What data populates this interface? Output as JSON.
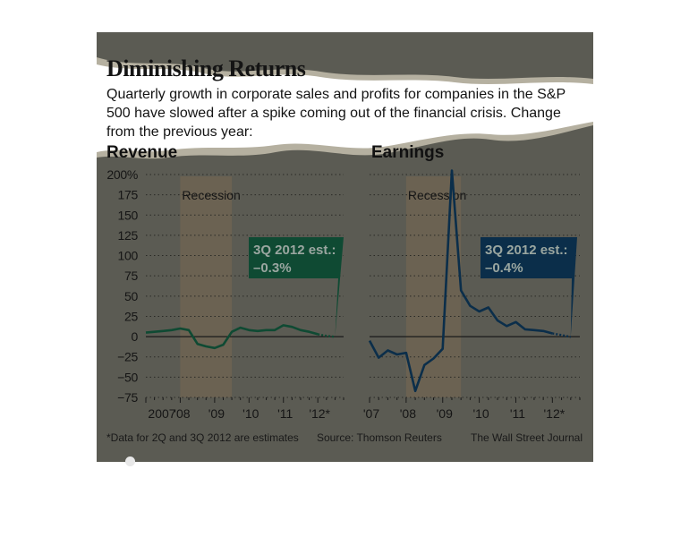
{
  "header": {
    "title": "Diminishing Returns",
    "subtitle": "Quarterly growth in corporate sales and profits for companies in the S&P 500 have slowed after a spike coming out of the financial crisis. Change from the previous year:"
  },
  "footer": {
    "note": "*Data for 2Q and 3Q 2012 are estimates",
    "source": "Source: Thomson Reuters",
    "credit": "The Wall Street Journal"
  },
  "colors": {
    "background": "#5b5b53",
    "recession_band": "#6b6252",
    "revenue_line": "#0f4a33",
    "earnings_line": "#0b2e4a",
    "callout_revenue": "#0f4a33",
    "callout_earnings": "#0b2e4a"
  },
  "chart_data": [
    {
      "type": "line",
      "title": "Revenue",
      "ylim": [
        -75,
        200
      ],
      "yticks": [
        {
          "v": 200,
          "label": "200%"
        },
        {
          "v": 175,
          "label": "175"
        },
        {
          "v": 150,
          "label": "150"
        },
        {
          "v": 125,
          "label": "125"
        },
        {
          "v": 100,
          "label": "100"
        },
        {
          "v": 75,
          "label": "75"
        },
        {
          "v": 50,
          "label": "50"
        },
        {
          "v": 25,
          "label": "25"
        },
        {
          "v": 0,
          "label": "0"
        },
        {
          "v": -25,
          "label": "−25"
        },
        {
          "v": -50,
          "label": "−50"
        },
        {
          "v": -75,
          "label": "−75"
        }
      ],
      "xlim": [
        2007.0,
        2012.75
      ],
      "xticks": [
        {
          "v": 2007.0,
          "label": "2007"
        },
        {
          "v": 2008.0,
          "label": "'08"
        },
        {
          "v": 2009.0,
          "label": "'09"
        },
        {
          "v": 2010.0,
          "label": "'10"
        },
        {
          "v": 2011.0,
          "label": "'11"
        },
        {
          "v": 2012.0,
          "label": "'12*"
        }
      ],
      "grid": true,
      "recession": {
        "label": "Recession",
        "x0": 2008.0,
        "x1": 2009.5
      },
      "series": [
        {
          "x": [
            2007.0,
            2007.25,
            2007.5,
            2007.75,
            2008.0,
            2008.25,
            2008.5,
            2008.75,
            2009.0,
            2009.25,
            2009.5,
            2009.75,
            2010.0,
            2010.25,
            2010.5,
            2010.75,
            2011.0,
            2011.25,
            2011.5,
            2011.75,
            2012.0
          ],
          "y": [
            5,
            6,
            7,
            8,
            10,
            8,
            -9,
            -12,
            -14,
            -10,
            6,
            11,
            8,
            7,
            8,
            8,
            14,
            12,
            8,
            6,
            3
          ]
        }
      ],
      "estimate": {
        "x": [
          2012.0,
          2012.25,
          2012.5
        ],
        "y": [
          3,
          1,
          -0.3
        ]
      },
      "callout": {
        "line1": "3Q 2012 est.:",
        "line2": "–0.3%"
      }
    },
    {
      "type": "line",
      "title": "Earnings",
      "ylim": [
        -75,
        200
      ],
      "xlim": [
        2007.0,
        2012.75
      ],
      "xticks": [
        {
          "v": 2007.0,
          "label": "'07"
        },
        {
          "v": 2008.0,
          "label": "'08"
        },
        {
          "v": 2009.0,
          "label": "'09"
        },
        {
          "v": 2010.0,
          "label": "'10"
        },
        {
          "v": 2011.0,
          "label": "'11"
        },
        {
          "v": 2012.0,
          "label": "'12*"
        }
      ],
      "grid": true,
      "recession": {
        "label": "Recession",
        "x0": 2008.0,
        "x1": 2009.5
      },
      "series": [
        {
          "x": [
            2007.0,
            2007.25,
            2007.5,
            2007.75,
            2008.0,
            2008.25,
            2008.5,
            2008.75,
            2009.0,
            2009.25,
            2009.5,
            2009.75,
            2010.0,
            2010.25,
            2010.5,
            2010.75,
            2011.0,
            2011.25,
            2011.5,
            2011.75,
            2012.0
          ],
          "y": [
            -5,
            -26,
            -17,
            -22,
            -20,
            -67,
            -35,
            -27,
            -15,
            205,
            57,
            38,
            31,
            36,
            20,
            13,
            18,
            9,
            8,
            7,
            4
          ]
        }
      ],
      "estimate": {
        "x": [
          2012.0,
          2012.25,
          2012.5
        ],
        "y": [
          4,
          2,
          -0.4
        ]
      },
      "callout": {
        "line1": "3Q 2012 est.:",
        "line2": "–0.4%"
      }
    }
  ]
}
